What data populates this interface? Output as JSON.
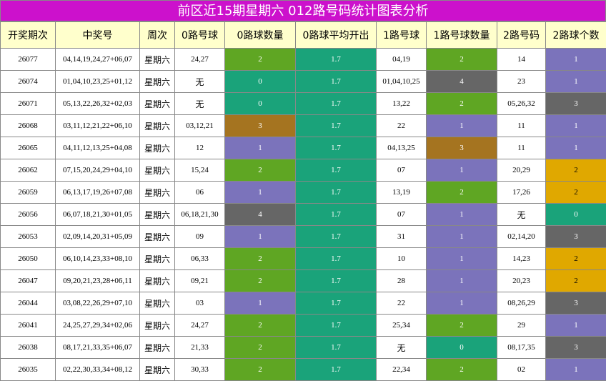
{
  "title": "前区近15期星期六 012路号码统计图表分析",
  "headers": [
    "开奖期次",
    "中奖号",
    "周次",
    "0路号球",
    "0路球数量",
    "0路球平均开出",
    "1路号球",
    "1路号球数量",
    "2路号码",
    "2路球个数"
  ],
  "palette": {
    "0": "#1aa37a",
    "1": "#7b73bb",
    "2": "#5fa623",
    "3": "#a57420",
    "4": "#666666",
    "avg": "#1aa37a",
    "2count_2": "#e0a800",
    "2count_3": "#666666",
    "2count_1": "#7b73bb",
    "2count_0": "#1aa37a"
  },
  "chart_data": {
    "type": "table",
    "title": "前区近15期星期六 012路号码统计图表分析",
    "columns": [
      "开奖期次",
      "中奖号",
      "周次",
      "0路号球",
      "0路球数量",
      "0路球平均开出",
      "1路号球",
      "1路号球数量",
      "2路号码",
      "2路球个数"
    ],
    "rows": [
      [
        "26077",
        "04,14,19,24,27+06,07",
        "星期六",
        "24,27",
        "2",
        "1.7",
        "04,19",
        "2",
        "14",
        "1"
      ],
      [
        "26074",
        "01,04,10,23,25+01,12",
        "星期六",
        "无",
        "0",
        "1.7",
        "01,04,10,25",
        "4",
        "23",
        "1"
      ],
      [
        "26071",
        "05,13,22,26,32+02,03",
        "星期六",
        "无",
        "0",
        "1.7",
        "13,22",
        "2",
        "05,26,32",
        "3"
      ],
      [
        "26068",
        "03,11,12,21,22+06,10",
        "星期六",
        "03,12,21",
        "3",
        "1.7",
        "22",
        "1",
        "11",
        "1"
      ],
      [
        "26065",
        "04,11,12,13,25+04,08",
        "星期六",
        "12",
        "1",
        "1.7",
        "04,13,25",
        "3",
        "11",
        "1"
      ],
      [
        "26062",
        "07,15,20,24,29+04,10",
        "星期六",
        "15,24",
        "2",
        "1.7",
        "07",
        "1",
        "20,29",
        "2"
      ],
      [
        "26059",
        "06,13,17,19,26+07,08",
        "星期六",
        "06",
        "1",
        "1.7",
        "13,19",
        "2",
        "17,26",
        "2"
      ],
      [
        "26056",
        "06,07,18,21,30+01,05",
        "星期六",
        "06,18,21,30",
        "4",
        "1.7",
        "07",
        "1",
        "无",
        "0"
      ],
      [
        "26053",
        "02,09,14,20,31+05,09",
        "星期六",
        "09",
        "1",
        "1.7",
        "31",
        "1",
        "02,14,20",
        "3"
      ],
      [
        "26050",
        "06,10,14,23,33+08,10",
        "星期六",
        "06,33",
        "2",
        "1.7",
        "10",
        "1",
        "14,23",
        "2"
      ],
      [
        "26047",
        "09,20,21,23,28+06,11",
        "星期六",
        "09,21",
        "2",
        "1.7",
        "28",
        "1",
        "20,23",
        "2"
      ],
      [
        "26044",
        "03,08,22,26,29+07,10",
        "星期六",
        "03",
        "1",
        "1.7",
        "22",
        "1",
        "08,26,29",
        "3"
      ],
      [
        "26041",
        "24,25,27,29,34+02,06",
        "星期六",
        "24,27",
        "2",
        "1.7",
        "25,34",
        "2",
        "29",
        "1"
      ],
      [
        "26038",
        "08,17,21,33,35+06,07",
        "星期六",
        "21,33",
        "2",
        "1.7",
        "无",
        "0",
        "08,17,35",
        "3"
      ],
      [
        "26035",
        "02,22,30,33,34+08,12",
        "星期六",
        "30,33",
        "2",
        "1.7",
        "22,34",
        "2",
        "02",
        "1"
      ]
    ]
  }
}
